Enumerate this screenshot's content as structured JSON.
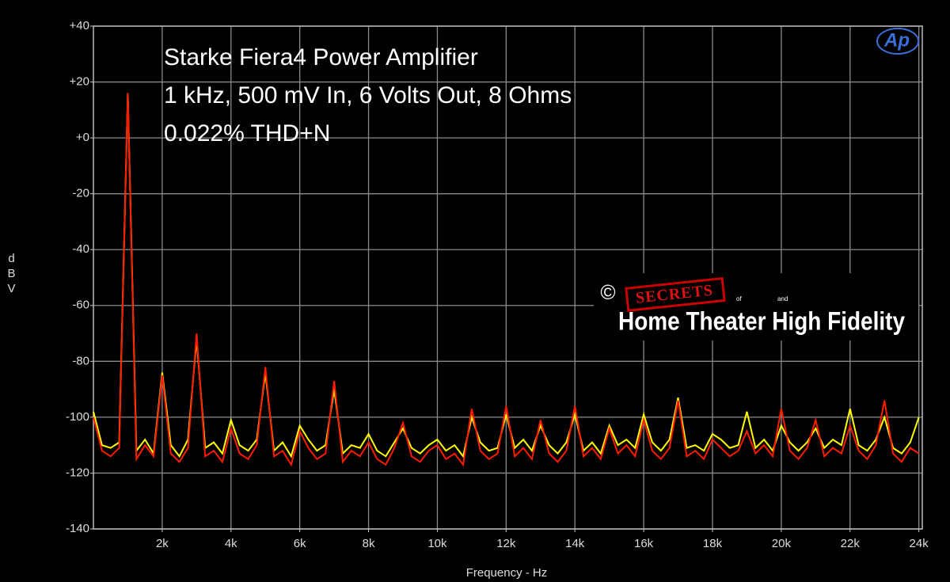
{
  "chart_data": {
    "type": "line",
    "title": [
      "Starke Fiera4 Power Amplifier",
      "1 kHz, 500 mV In, 6 Volts Out, 8 Ohms",
      "0.022% THD+N"
    ],
    "y_label": "dBV",
    "x_label": "Frequency - Hz",
    "annotations": {
      "copyright": "©",
      "brand": "SECRETS",
      "of": "of",
      "and": "and",
      "site": "Home Theater High Fidelity",
      "logo": "Ap"
    },
    "xlim": [
      0,
      24100
    ],
    "ylim": [
      -140,
      40
    ],
    "xticks": [
      {
        "value": 2000,
        "label": "2k"
      },
      {
        "value": 4000,
        "label": "4k"
      },
      {
        "value": 6000,
        "label": "6k"
      },
      {
        "value": 8000,
        "label": "8k"
      },
      {
        "value": 10000,
        "label": "10k"
      },
      {
        "value": 12000,
        "label": "12k"
      },
      {
        "value": 14000,
        "label": "14k"
      },
      {
        "value": 16000,
        "label": "16k"
      },
      {
        "value": 18000,
        "label": "18k"
      },
      {
        "value": 20000,
        "label": "20k"
      },
      {
        "value": 22000,
        "label": "22k"
      },
      {
        "value": 24000,
        "label": "24k"
      }
    ],
    "yticks": [
      {
        "value": 40,
        "label": "+40"
      },
      {
        "value": 20,
        "label": "+20"
      },
      {
        "value": 0,
        "label": "+0"
      },
      -20,
      -40,
      -60,
      -80,
      -100,
      -120,
      -140
    ],
    "grid": true,
    "x": [
      0,
      250,
      500,
      750,
      1000,
      1250,
      1500,
      1750,
      2000,
      2250,
      2500,
      2750,
      3000,
      3250,
      3500,
      3750,
      4000,
      4250,
      4500,
      4750,
      5000,
      5250,
      5500,
      5750,
      6000,
      6250,
      6500,
      6750,
      7000,
      7250,
      7500,
      7750,
      8000,
      8250,
      8500,
      8750,
      9000,
      9250,
      9500,
      9750,
      10000,
      10250,
      10500,
      10750,
      11000,
      11250,
      11500,
      11750,
      12000,
      12250,
      12500,
      12750,
      13000,
      13250,
      13500,
      13750,
      14000,
      14250,
      14500,
      14750,
      15000,
      15250,
      15500,
      15750,
      16000,
      16250,
      16500,
      16750,
      17000,
      17250,
      17500,
      17750,
      18000,
      18250,
      18500,
      18750,
      19000,
      19250,
      19500,
      19750,
      20000,
      20250,
      20500,
      20750,
      21000,
      21250,
      21500,
      21750,
      22000,
      22250,
      22500,
      22750,
      23000,
      23250,
      23500,
      23750,
      24000
    ],
    "series": [
      {
        "color": "#ffff00",
        "values": [
          -98,
          -110,
          -111,
          -109,
          16,
          -112,
          -108,
          -113,
          -84,
          -110,
          -114,
          -108,
          -72,
          -111,
          -109,
          -113,
          -101,
          -110,
          -112,
          -108,
          -84,
          -112,
          -109,
          -114,
          -103,
          -108,
          -112,
          -110,
          -90,
          -113,
          -110,
          -111,
          -106,
          -112,
          -114,
          -109,
          -104,
          -111,
          -113,
          -110,
          -108,
          -112,
          -110,
          -114,
          -100,
          -109,
          -112,
          -111,
          -99,
          -111,
          -108,
          -112,
          -103,
          -110,
          -113,
          -109,
          -99,
          -112,
          -109,
          -113,
          -103,
          -110,
          -108,
          -111,
          -99,
          -109,
          -112,
          -108,
          -93,
          -111,
          -110,
          -112,
          -106,
          -108,
          -111,
          -110,
          -98,
          -111,
          -108,
          -112,
          -103,
          -109,
          -112,
          -109,
          -104,
          -111,
          -108,
          -110,
          -97,
          -110,
          -112,
          -108,
          -100,
          -111,
          -113,
          -109,
          -100
        ]
      },
      {
        "color": "#ff1a00",
        "values": [
          -100,
          -112,
          -114,
          -111,
          16,
          -115,
          -110,
          -114,
          -85,
          -113,
          -116,
          -111,
          -70,
          -114,
          -112,
          -116,
          -104,
          -113,
          -115,
          -110,
          -82,
          -114,
          -112,
          -117,
          -105,
          -111,
          -115,
          -113,
          -87,
          -116,
          -112,
          -114,
          -109,
          -115,
          -117,
          -111,
          -102,
          -114,
          -116,
          -112,
          -110,
          -115,
          -113,
          -117,
          -97,
          -112,
          -115,
          -113,
          -96,
          -114,
          -111,
          -115,
          -101,
          -113,
          -116,
          -112,
          -96,
          -114,
          -111,
          -115,
          -104,
          -113,
          -110,
          -114,
          -101,
          -112,
          -115,
          -111,
          -94,
          -114,
          -112,
          -115,
          -108,
          -111,
          -114,
          -112,
          -105,
          -113,
          -110,
          -114,
          -97,
          -112,
          -115,
          -111,
          -101,
          -114,
          -111,
          -113,
          -103,
          -112,
          -115,
          -110,
          -94,
          -113,
          -116,
          -111,
          -113
        ]
      }
    ]
  }
}
